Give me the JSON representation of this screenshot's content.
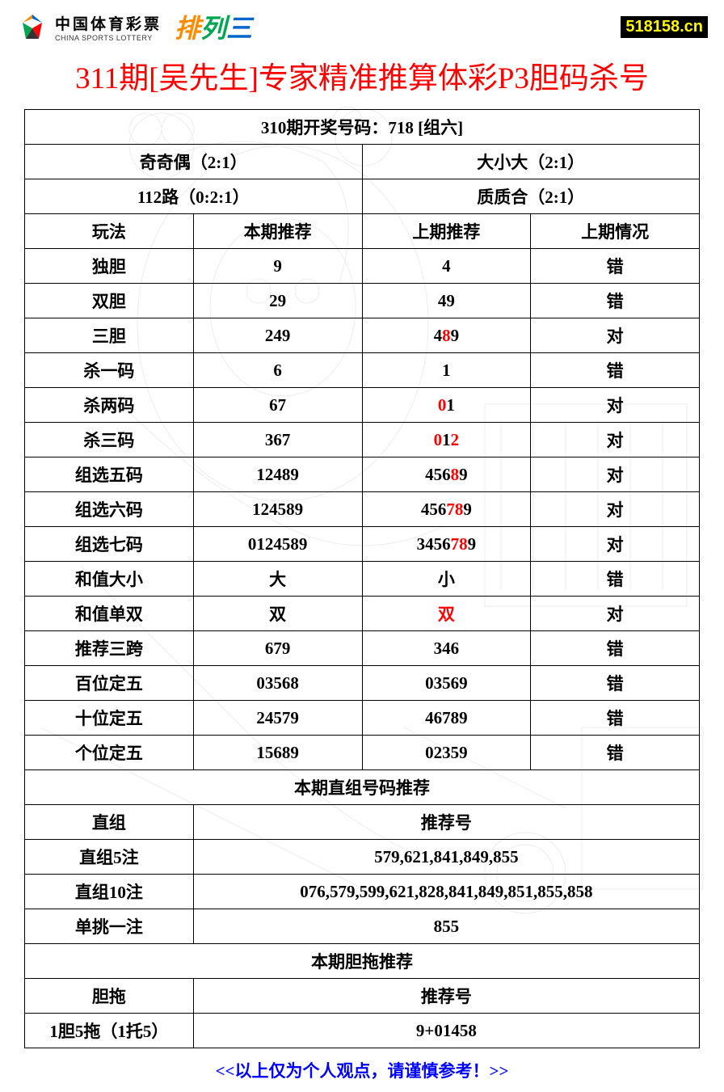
{
  "header": {
    "logo_cn": "中国体育彩票",
    "logo_en": "CHINA SPORTS LOTTERY",
    "pailie_chars": [
      "排",
      "列",
      "三"
    ],
    "pailie_colors": [
      "#ff8c00",
      "#00a651",
      "#0066cc"
    ],
    "url_badge": "518158.cn"
  },
  "title": "311期[吴先生]专家精准推算体彩P3胆码杀号",
  "result_header": "310期开奖号码：718 [组六]",
  "summary": {
    "row1_left": "奇奇偶（2:1）",
    "row1_right": "大小大（2:1）",
    "row2_left": "112路（0:2:1）",
    "row2_right": "质质合（2:1）"
  },
  "columns": [
    "玩法",
    "本期推荐",
    "上期推荐",
    "上期情况"
  ],
  "rows": [
    {
      "play": "独胆",
      "current": [
        {
          "t": "9"
        }
      ],
      "prev": [
        {
          "t": "4"
        }
      ],
      "status": "错",
      "status_hl": false
    },
    {
      "play": "双胆",
      "current": [
        {
          "t": "29"
        }
      ],
      "prev": [
        {
          "t": "49"
        }
      ],
      "status": "错",
      "status_hl": false
    },
    {
      "play": "三胆",
      "current": [
        {
          "t": "249"
        }
      ],
      "prev": [
        {
          "t": "4"
        },
        {
          "t": "8",
          "hl": true
        },
        {
          "t": "9"
        }
      ],
      "status": "对",
      "status_hl": true
    },
    {
      "play": "杀一码",
      "current": [
        {
          "t": "6"
        }
      ],
      "prev": [
        {
          "t": "1"
        }
      ],
      "status": "错",
      "status_hl": false
    },
    {
      "play": "杀两码",
      "current": [
        {
          "t": "67"
        }
      ],
      "prev": [
        {
          "t": "0",
          "hl": true
        },
        {
          "t": "1"
        }
      ],
      "status": "对",
      "status_hl": true
    },
    {
      "play": "杀三码",
      "current": [
        {
          "t": "367"
        }
      ],
      "prev": [
        {
          "t": "0",
          "hl": true
        },
        {
          "t": "1"
        },
        {
          "t": "2",
          "hl": true
        }
      ],
      "status": "对",
      "status_hl": true
    },
    {
      "play": "组选五码",
      "current": [
        {
          "t": "12489"
        }
      ],
      "prev": [
        {
          "t": "456"
        },
        {
          "t": "8",
          "hl": true
        },
        {
          "t": "9"
        }
      ],
      "status": "对",
      "status_hl": true
    },
    {
      "play": "组选六码",
      "current": [
        {
          "t": "124589"
        }
      ],
      "prev": [
        {
          "t": "456"
        },
        {
          "t": "78",
          "hl": true
        },
        {
          "t": "9"
        }
      ],
      "status": "对",
      "status_hl": true
    },
    {
      "play": "组选七码",
      "current": [
        {
          "t": "0124589"
        }
      ],
      "prev": [
        {
          "t": "3456"
        },
        {
          "t": "78",
          "hl": true
        },
        {
          "t": "9"
        }
      ],
      "status": "对",
      "status_hl": true
    },
    {
      "play": "和值大小",
      "current": [
        {
          "t": "大"
        }
      ],
      "prev": [
        {
          "t": "小"
        }
      ],
      "status": "错",
      "status_hl": false
    },
    {
      "play": "和值单双",
      "current": [
        {
          "t": "双"
        }
      ],
      "prev": [
        {
          "t": "双",
          "hl": true
        }
      ],
      "status": "对",
      "status_hl": true
    },
    {
      "play": "推荐三跨",
      "current": [
        {
          "t": "679"
        }
      ],
      "prev": [
        {
          "t": "346"
        }
      ],
      "status": "错",
      "status_hl": false
    },
    {
      "play": "百位定五",
      "current": [
        {
          "t": "03568"
        }
      ],
      "prev": [
        {
          "t": "03569"
        }
      ],
      "status": "错",
      "status_hl": false
    },
    {
      "play": "十位定五",
      "current": [
        {
          "t": "24579"
        }
      ],
      "prev": [
        {
          "t": "46789"
        }
      ],
      "status": "错",
      "status_hl": false
    },
    {
      "play": "个位定五",
      "current": [
        {
          "t": "15689"
        }
      ],
      "prev": [
        {
          "t": "02359"
        }
      ],
      "status": "错",
      "status_hl": false
    }
  ],
  "section2_title": "本期直组号码推荐",
  "section2_header": {
    "left": "直组",
    "right": "推荐号"
  },
  "section2_rows": [
    {
      "label": "直组5注",
      "value": "579,621,841,849,855"
    },
    {
      "label": "直组10注",
      "value": "076,579,599,621,828,841,849,851,855,858"
    },
    {
      "label": "单挑一注",
      "value": "855"
    }
  ],
  "section3_title": "本期胆拖推荐",
  "section3_header": {
    "left": "胆拖",
    "right": "推荐号"
  },
  "section3_rows": [
    {
      "label": "1胆5拖（1托5）",
      "value": "9+01458"
    }
  ],
  "footer": "<<以上仅为个人观点，请谨慎参考！>>",
  "colors": {
    "title": "#ff0000",
    "highlight": "#ff0000",
    "footer": "#0000ff",
    "border": "#000000",
    "badge_bg": "#000000",
    "badge_fg": "#fff701"
  }
}
